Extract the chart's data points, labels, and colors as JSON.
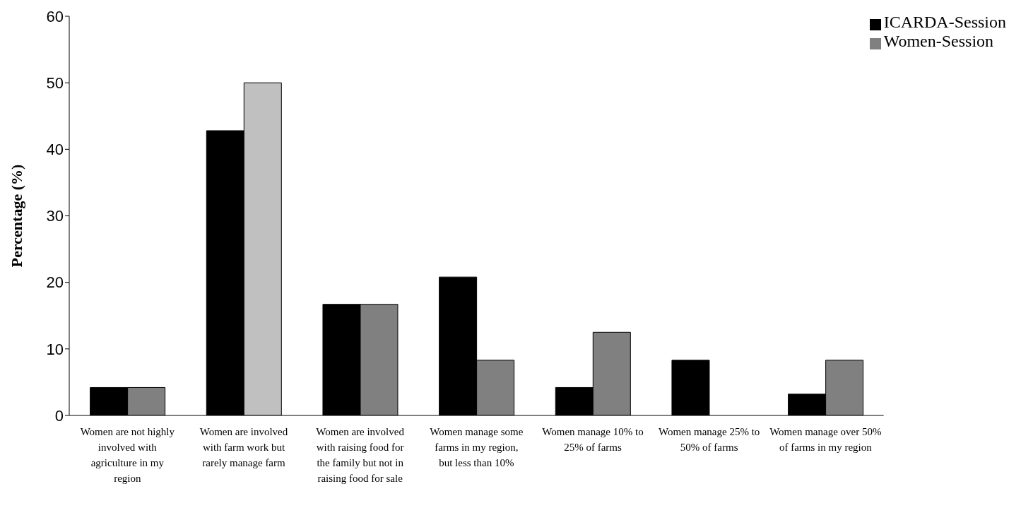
{
  "chart_data": {
    "type": "bar",
    "ylabel": "Percentage (%)",
    "categories": [
      "Women are not highly involved with agriculture in my region",
      "Women are involved with farm work but rarely manage farm",
      "Women are involved with raising food for the family but not in raising food for sale",
      "Women manage some farms in my region, but less than 10%",
      "Women manage 10% to 25% of farms",
      "Women manage 25% to 50% of farms",
      "Women manage over 50% of farms in my region"
    ],
    "series": [
      {
        "name": "ICARDA-Session",
        "color": "#000000",
        "values": [
          4.2,
          42.8,
          16.7,
          20.8,
          4.2,
          8.3,
          3.2
        ]
      },
      {
        "name": "Women-Session",
        "color": "#808080",
        "colors": [
          "#808080",
          "#c0c0c0",
          "#808080",
          "#808080",
          "#808080",
          "#808080",
          "#808080"
        ],
        "values": [
          4.2,
          50,
          16.7,
          8.3,
          12.5,
          0,
          8.3
        ]
      }
    ],
    "ylim": [
      0,
      60
    ],
    "yticks": [
      0,
      10,
      20,
      30,
      40,
      50,
      60
    ],
    "legend": "top right"
  }
}
